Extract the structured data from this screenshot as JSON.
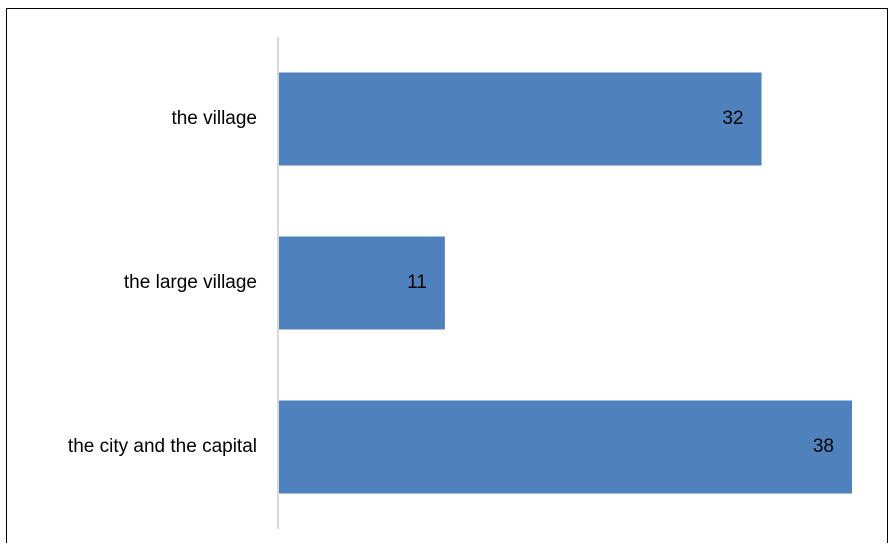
{
  "chart_data": {
    "type": "bar",
    "orientation": "horizontal",
    "categories": [
      "the village",
      "the large village",
      "the city and the capital"
    ],
    "values": [
      32,
      11,
      38
    ],
    "title": "",
    "xlabel": "",
    "ylabel": "",
    "xlim": [
      0,
      38
    ],
    "grid": false,
    "legend": "none",
    "show_data_labels": true,
    "bar_color": "#4F81BD"
  }
}
